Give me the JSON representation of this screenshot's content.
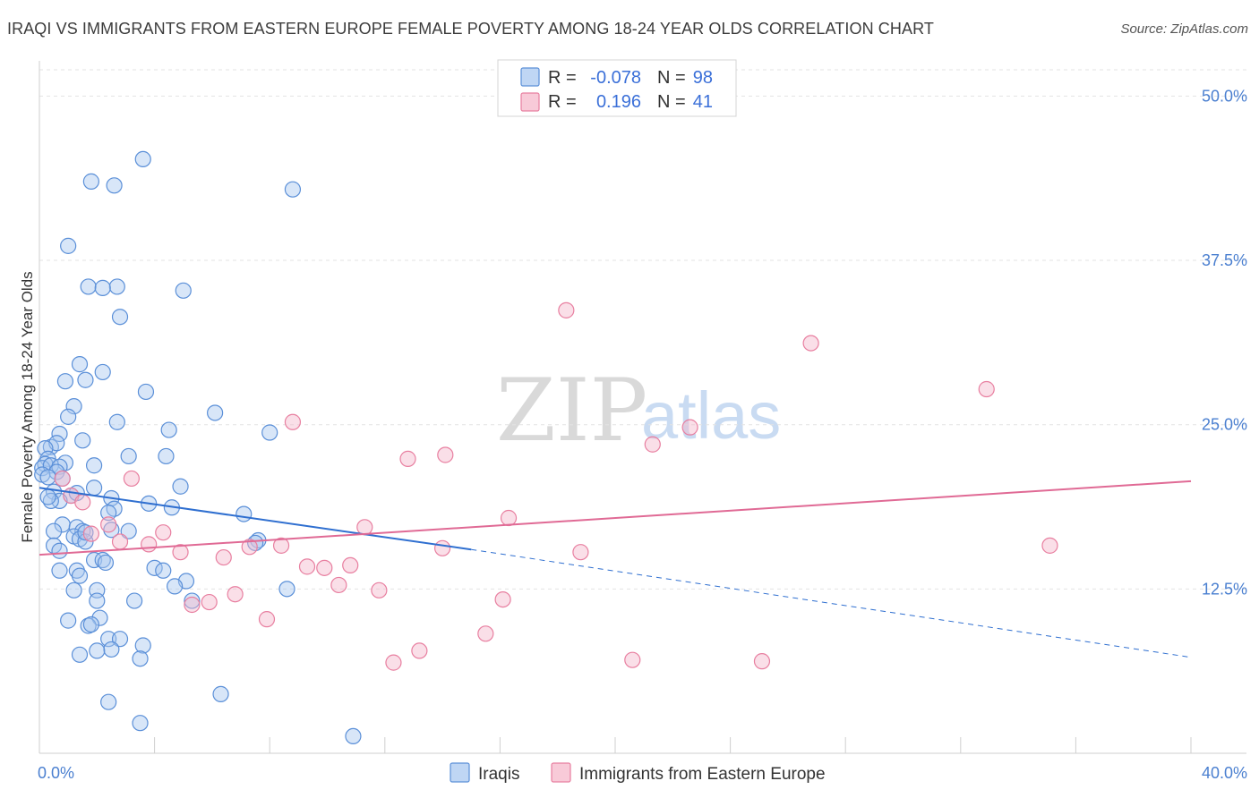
{
  "title": "IRAQI VS IMMIGRANTS FROM EASTERN EUROPE FEMALE POVERTY AMONG 18-24 YEAR OLDS CORRELATION CHART",
  "source": "Source: ZipAtlas.com",
  "watermark": {
    "zip": "ZIP",
    "atlas": "atlas"
  },
  "colors": {
    "blue_fill": "#a9c8f0",
    "blue_stroke": "#5a8fd8",
    "blue_line": "#2f6fd0",
    "pink_fill": "#f5b8cb",
    "pink_stroke": "#e87fa0",
    "pink_line": "#e06a95",
    "grid": "#e3e3e3",
    "axis_text": "#4a7fd0"
  },
  "legend": {
    "rows": [
      {
        "r_label": "R = ",
        "r_value": "-0.078",
        "n_label": "N = ",
        "n_value": "98"
      },
      {
        "r_label": "R = ",
        "r_value": "0.196",
        "n_label": "N = ",
        "n_value": "41"
      }
    ]
  },
  "chart_data": {
    "type": "scatter",
    "xlabel": "",
    "ylabel": "Female Poverty Among 18-24 Year Olds",
    "xlim": [
      0,
      40
    ],
    "ylim": [
      0,
      52
    ],
    "x_tick_labels": [
      "0.0%",
      "40.0%"
    ],
    "y_ticks": [
      12.5,
      25.0,
      37.5,
      50.0
    ],
    "y_tick_labels": [
      "12.5%",
      "25.0%",
      "37.5%",
      "50.0%"
    ],
    "bottom_legend": [
      "Iraqis",
      "Immigrants from Eastern Europe"
    ],
    "series": [
      {
        "name": "Iraqis",
        "r": -0.078,
        "n": 98,
        "trend": {
          "x0": 0,
          "y0": 20.2,
          "x1": 15,
          "y1": 15.5,
          "dashed_to_x": 40,
          "dashed_to_y": 7.3
        },
        "points": [
          [
            3.6,
            45.2
          ],
          [
            1.8,
            43.5
          ],
          [
            2.6,
            43.2
          ],
          [
            8.8,
            42.9
          ],
          [
            1.0,
            38.6
          ],
          [
            1.7,
            35.5
          ],
          [
            2.7,
            35.5
          ],
          [
            2.2,
            35.4
          ],
          [
            5.0,
            35.2
          ],
          [
            2.8,
            33.2
          ],
          [
            1.4,
            29.6
          ],
          [
            2.2,
            29.0
          ],
          [
            0.9,
            28.3
          ],
          [
            1.6,
            28.4
          ],
          [
            3.7,
            27.5
          ],
          [
            6.1,
            25.9
          ],
          [
            1.2,
            26.4
          ],
          [
            1.0,
            25.6
          ],
          [
            2.7,
            25.2
          ],
          [
            4.5,
            24.6
          ],
          [
            8.0,
            24.4
          ],
          [
            0.7,
            24.3
          ],
          [
            1.5,
            23.8
          ],
          [
            0.4,
            23.3
          ],
          [
            0.6,
            23.6
          ],
          [
            0.2,
            23.2
          ],
          [
            3.1,
            22.6
          ],
          [
            4.4,
            22.6
          ],
          [
            0.3,
            22.4
          ],
          [
            0.9,
            22.1
          ],
          [
            0.2,
            22.0
          ],
          [
            1.9,
            21.9
          ],
          [
            0.1,
            21.7
          ],
          [
            0.4,
            21.9
          ],
          [
            0.7,
            21.8
          ],
          [
            0.6,
            21.4
          ],
          [
            0.1,
            21.2
          ],
          [
            0.3,
            21.0
          ],
          [
            4.9,
            20.3
          ],
          [
            1.9,
            20.2
          ],
          [
            0.5,
            19.9
          ],
          [
            1.1,
            19.6
          ],
          [
            1.3,
            19.8
          ],
          [
            2.5,
            19.4
          ],
          [
            0.7,
            19.2
          ],
          [
            0.4,
            19.2
          ],
          [
            3.8,
            19.0
          ],
          [
            2.6,
            18.6
          ],
          [
            7.1,
            18.2
          ],
          [
            2.4,
            18.3
          ],
          [
            0.8,
            17.4
          ],
          [
            1.3,
            17.2
          ],
          [
            0.5,
            16.9
          ],
          [
            1.5,
            16.9
          ],
          [
            3.1,
            16.9
          ],
          [
            1.2,
            16.5
          ],
          [
            1.4,
            16.3
          ],
          [
            1.6,
            16.1
          ],
          [
            7.6,
            16.2
          ],
          [
            0.5,
            15.8
          ],
          [
            0.7,
            15.4
          ],
          [
            1.9,
            14.7
          ],
          [
            2.2,
            14.7
          ],
          [
            2.3,
            14.5
          ],
          [
            4.0,
            14.1
          ],
          [
            4.3,
            13.9
          ],
          [
            0.7,
            13.9
          ],
          [
            1.3,
            13.9
          ],
          [
            1.4,
            13.5
          ],
          [
            5.1,
            13.1
          ],
          [
            1.2,
            12.4
          ],
          [
            2.0,
            12.4
          ],
          [
            4.7,
            12.7
          ],
          [
            8.6,
            12.5
          ],
          [
            2.0,
            11.6
          ],
          [
            3.3,
            11.6
          ],
          [
            5.3,
            11.6
          ],
          [
            1.0,
            10.1
          ],
          [
            2.1,
            10.3
          ],
          [
            1.7,
            9.7
          ],
          [
            1.8,
            9.8
          ],
          [
            2.4,
            8.7
          ],
          [
            2.8,
            8.7
          ],
          [
            3.6,
            8.2
          ],
          [
            2.5,
            7.9
          ],
          [
            2.0,
            7.8
          ],
          [
            1.4,
            7.5
          ],
          [
            3.5,
            7.2
          ],
          [
            6.3,
            4.5
          ],
          [
            2.4,
            3.9
          ],
          [
            3.5,
            2.3
          ],
          [
            10.9,
            1.3
          ],
          [
            7.5,
            16.0
          ],
          [
            1.6,
            16.8
          ],
          [
            0.3,
            19.5
          ],
          [
            2.5,
            17.0
          ],
          [
            4.6,
            18.7
          ],
          [
            0.8,
            20.9
          ]
        ]
      },
      {
        "name": "Immigrants from Eastern Europe",
        "r": 0.196,
        "n": 41,
        "trend": {
          "x0": 0,
          "y0": 15.1,
          "x1": 40,
          "y1": 20.7
        },
        "points": [
          [
            18.3,
            33.7
          ],
          [
            26.8,
            31.2
          ],
          [
            32.9,
            27.7
          ],
          [
            8.8,
            25.2
          ],
          [
            22.6,
            24.8
          ],
          [
            21.3,
            23.5
          ],
          [
            14.1,
            22.7
          ],
          [
            12.8,
            22.4
          ],
          [
            3.2,
            20.9
          ],
          [
            0.8,
            20.9
          ],
          [
            1.1,
            19.6
          ],
          [
            1.5,
            19.1
          ],
          [
            16.3,
            17.9
          ],
          [
            11.3,
            17.2
          ],
          [
            2.4,
            17.4
          ],
          [
            4.3,
            16.8
          ],
          [
            1.8,
            16.7
          ],
          [
            2.8,
            16.1
          ],
          [
            3.8,
            15.9
          ],
          [
            14.0,
            15.6
          ],
          [
            8.4,
            15.8
          ],
          [
            7.3,
            15.7
          ],
          [
            35.1,
            15.8
          ],
          [
            18.8,
            15.3
          ],
          [
            4.9,
            15.3
          ],
          [
            6.4,
            14.9
          ],
          [
            9.3,
            14.2
          ],
          [
            9.9,
            14.1
          ],
          [
            10.8,
            14.3
          ],
          [
            10.4,
            12.8
          ],
          [
            11.8,
            12.4
          ],
          [
            6.8,
            12.1
          ],
          [
            16.1,
            11.7
          ],
          [
            5.9,
            11.5
          ],
          [
            5.3,
            11.3
          ],
          [
            7.9,
            10.2
          ],
          [
            15.5,
            9.1
          ],
          [
            13.2,
            7.8
          ],
          [
            12.3,
            6.9
          ],
          [
            20.6,
            7.1
          ],
          [
            25.1,
            7.0
          ]
        ]
      }
    ]
  }
}
